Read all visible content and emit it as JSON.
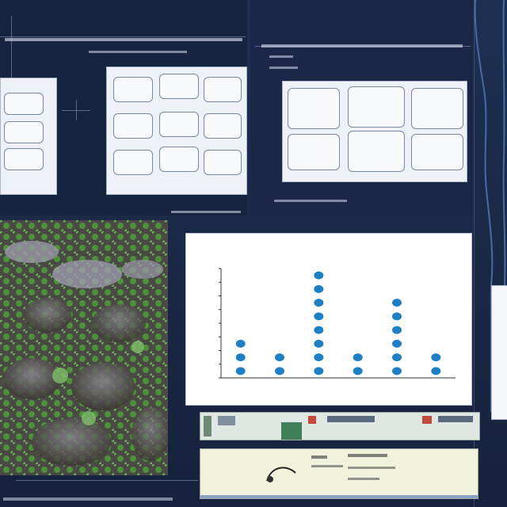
{
  "left_header": {
    "text": ""
  },
  "center_header": {
    "text": ""
  },
  "footer_text": "",
  "chart_data": {
    "type": "scatter",
    "title": "",
    "subtitle": "",
    "xlabel": "",
    "ylabel": "",
    "x_categories": [
      "",
      "",
      "",
      "",
      "",
      ""
    ],
    "stack_counts": [
      3,
      2,
      8,
      2,
      6,
      2
    ],
    "grid": false
  },
  "colors": {
    "background": "#1b2a4a",
    "chart_point": "#1f7fc4",
    "microscopy_green": "#4d8f3a",
    "microscopy_dark": "#3a3530"
  },
  "icons": {
    "figure_outline": "silhouette-icon",
    "curve_diagram": "curve-icon"
  }
}
